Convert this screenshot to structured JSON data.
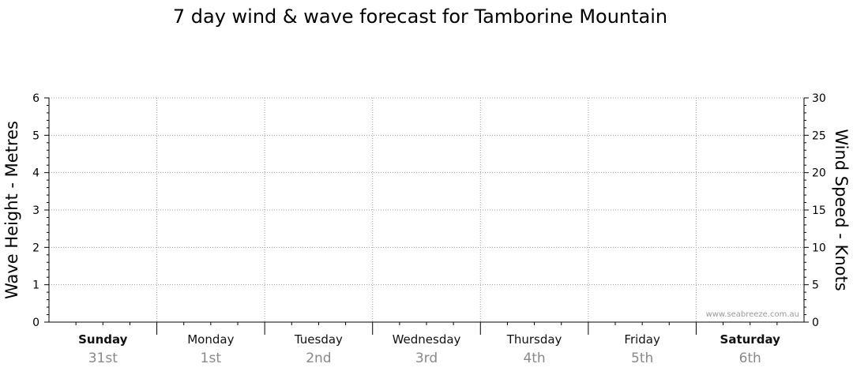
{
  "chart_data": {
    "type": "line",
    "title": "7 day wind & wave forecast for Tamborine Mountain",
    "ylabel_left": "Wave Height - Metres",
    "ylabel_right": "Wind Speed - Knots",
    "y_left": {
      "min": 0,
      "max": 6,
      "ticks": [
        "0",
        "1",
        "2",
        "3",
        "4",
        "5",
        "6"
      ]
    },
    "y_right": {
      "min": 0,
      "max": 30,
      "ticks": [
        "0",
        "5",
        "10",
        "15",
        "20",
        "25",
        "30"
      ]
    },
    "grid": true,
    "days": [
      {
        "name": "Sunday",
        "date": "31st",
        "bold": true
      },
      {
        "name": "Monday",
        "date": "1st",
        "bold": false
      },
      {
        "name": "Tuesday",
        "date": "2nd",
        "bold": false
      },
      {
        "name": "Wednesday",
        "date": "3rd",
        "bold": false
      },
      {
        "name": "Thursday",
        "date": "4th",
        "bold": false
      },
      {
        "name": "Friday",
        "date": "5th",
        "bold": false
      },
      {
        "name": "Saturday",
        "date": "6th",
        "bold": true
      }
    ],
    "series": []
  },
  "watermark": "www.seabreeze.com.au"
}
